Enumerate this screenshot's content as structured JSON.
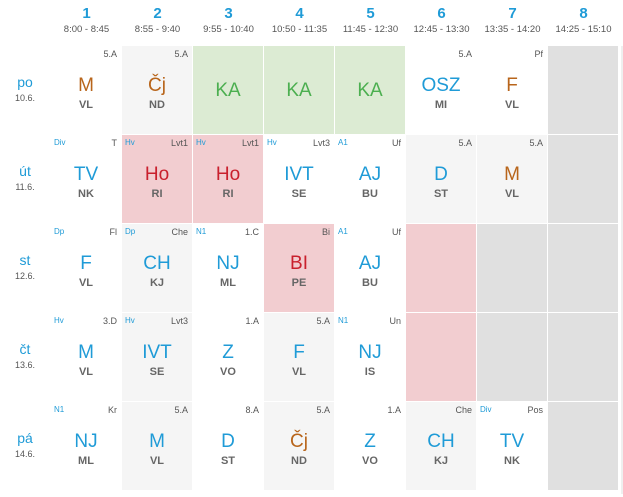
{
  "columns": [
    {
      "num": "1",
      "time": "8:00 - 8:45"
    },
    {
      "num": "2",
      "time": "8:55 - 9:40"
    },
    {
      "num": "3",
      "time": "9:55 - 10:40"
    },
    {
      "num": "4",
      "time": "10:50 - 11:35"
    },
    {
      "num": "5",
      "time": "11:45 - 12:30"
    },
    {
      "num": "6",
      "time": "12:45 - 13:30"
    },
    {
      "num": "7",
      "time": "13:35 - 14:20"
    },
    {
      "num": "8",
      "time": "14:25 - 15:10"
    }
  ],
  "days": [
    {
      "name": "po",
      "date": "10.6."
    },
    {
      "name": "út",
      "date": "11.6."
    },
    {
      "name": "st",
      "date": "12.6."
    },
    {
      "name": "čt",
      "date": "13.6."
    },
    {
      "name": "pá",
      "date": "14.6."
    }
  ],
  "colors": {
    "bg_white": "#ffffff",
    "bg_light": "#f5f5f5",
    "bg_gray": "#e0e0e0",
    "bg_green": "#dcebd3",
    "bg_red": "#f2cdd0",
    "blue": "#1f9bd7",
    "orange": "#b8651b",
    "red": "#c9202d",
    "green": "#4caf50"
  },
  "timetable": [
    [
      {
        "bg": "white",
        "subject": "M",
        "color": "orange",
        "teacher": "VL",
        "room": "5.A"
      },
      {
        "bg": "light",
        "subject": "Čj",
        "color": "orange",
        "teacher": "ND",
        "room": "5.A"
      },
      {
        "bg": "green",
        "subject": "KA",
        "color": "green"
      },
      {
        "bg": "green",
        "subject": "KA",
        "color": "green"
      },
      {
        "bg": "green",
        "subject": "KA",
        "color": "green"
      },
      {
        "bg": "white",
        "subject": "OSZ",
        "color": "blue",
        "teacher": "MI",
        "room": "5.A"
      },
      {
        "bg": "white",
        "subject": "F",
        "color": "orange",
        "teacher": "VL",
        "room": "Pf"
      },
      {
        "bg": "gray"
      }
    ],
    [
      {
        "bg": "white",
        "subject": "TV",
        "color": "blue",
        "teacher": "NK",
        "room": "T",
        "group": "Div"
      },
      {
        "bg": "red",
        "subject": "Ho",
        "color": "red",
        "teacher": "RI",
        "room": "Lvt1",
        "group": "Hv"
      },
      {
        "bg": "red",
        "subject": "Ho",
        "color": "red",
        "teacher": "RI",
        "room": "Lvt1",
        "group": "Hv"
      },
      {
        "bg": "white",
        "subject": "IVT",
        "color": "blue",
        "teacher": "SE",
        "room": "Lvt3",
        "group": "Hv"
      },
      {
        "bg": "white",
        "subject": "AJ",
        "color": "blue",
        "teacher": "BU",
        "room": "Uf",
        "group": "A1"
      },
      {
        "bg": "light",
        "subject": "D",
        "color": "blue",
        "teacher": "ST",
        "room": "5.A"
      },
      {
        "bg": "light",
        "subject": "M",
        "color": "orange",
        "teacher": "VL",
        "room": "5.A"
      },
      {
        "bg": "gray"
      }
    ],
    [
      {
        "bg": "white",
        "subject": "F",
        "color": "blue",
        "teacher": "VL",
        "room": "Fl",
        "group": "Dp"
      },
      {
        "bg": "light",
        "subject": "CH",
        "color": "blue",
        "teacher": "KJ",
        "room": "Che",
        "group": "Dp"
      },
      {
        "bg": "white",
        "subject": "NJ",
        "color": "blue",
        "teacher": "ML",
        "room": "1.C",
        "group": "N1"
      },
      {
        "bg": "red",
        "subject": "BI",
        "color": "red",
        "teacher": "PE",
        "room": "Bi"
      },
      {
        "bg": "white",
        "subject": "AJ",
        "color": "blue",
        "teacher": "BU",
        "room": "Uf",
        "group": "A1"
      },
      {
        "bg": "red"
      },
      {
        "bg": "gray"
      },
      {
        "bg": "gray"
      }
    ],
    [
      {
        "bg": "white",
        "subject": "M",
        "color": "blue",
        "teacher": "VL",
        "room": "3.D",
        "group": "Hv"
      },
      {
        "bg": "light",
        "subject": "IVT",
        "color": "blue",
        "teacher": "SE",
        "room": "Lvt3",
        "group": "Hv"
      },
      {
        "bg": "white",
        "subject": "Z",
        "color": "blue",
        "teacher": "VO",
        "room": "1.A"
      },
      {
        "bg": "light",
        "subject": "F",
        "color": "blue",
        "teacher": "VL",
        "room": "5.A"
      },
      {
        "bg": "white",
        "subject": "NJ",
        "color": "blue",
        "teacher": "IS",
        "room": "Un",
        "group": "N1"
      },
      {
        "bg": "red"
      },
      {
        "bg": "gray"
      },
      {
        "bg": "gray"
      }
    ],
    [
      {
        "bg": "white",
        "subject": "NJ",
        "color": "blue",
        "teacher": "ML",
        "room": "Kr",
        "group": "N1"
      },
      {
        "bg": "light",
        "subject": "M",
        "color": "blue",
        "teacher": "VL",
        "room": "5.A"
      },
      {
        "bg": "white",
        "subject": "D",
        "color": "blue",
        "teacher": "ST",
        "room": "8.A"
      },
      {
        "bg": "light",
        "subject": "Čj",
        "color": "orange",
        "teacher": "ND",
        "room": "5.A"
      },
      {
        "bg": "white",
        "subject": "Z",
        "color": "blue",
        "teacher": "VO",
        "room": "1.A"
      },
      {
        "bg": "light",
        "subject": "CH",
        "color": "blue",
        "teacher": "KJ",
        "room": "Che"
      },
      {
        "bg": "white",
        "subject": "TV",
        "color": "blue",
        "teacher": "NK",
        "room": "Pos",
        "group": "Div"
      },
      {
        "bg": "gray"
      }
    ]
  ]
}
